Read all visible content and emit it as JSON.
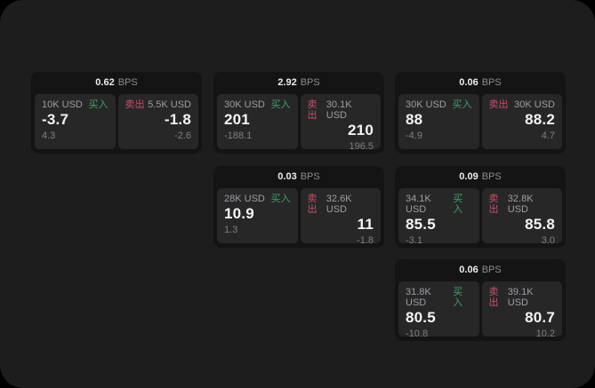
{
  "page": {
    "background": "#1d1d1e",
    "outer_background": "#000000",
    "card_background": "#141414",
    "tile_background": "#272728",
    "buy_color": "#3fa169",
    "sell_color": "#c84f6a"
  },
  "labels": {
    "bps_unit": "BPS",
    "buy": "买入",
    "sell": "卖出"
  },
  "cards": [
    {
      "bps": "0.62",
      "buy": {
        "notional": "10K USD",
        "price": "-3.7",
        "sub": "4.3"
      },
      "sell": {
        "notional": "5.5K USD",
        "price": "-1.8",
        "sub": "-2.6"
      }
    },
    {
      "bps": "2.92",
      "buy": {
        "notional": "30K USD",
        "price": "201",
        "sub": "-188.1"
      },
      "sell": {
        "notional": "30.1K USD",
        "price": "210",
        "sub": "196.5"
      }
    },
    {
      "bps": "0.06",
      "buy": {
        "notional": "30K USD",
        "price": "88",
        "sub": "-4.9"
      },
      "sell": {
        "notional": "30K USD",
        "price": "88.2",
        "sub": "4.7"
      }
    },
    {
      "bps": "0.03",
      "buy": {
        "notional": "28K USD",
        "price": "10.9",
        "sub": "1.3"
      },
      "sell": {
        "notional": "32.6K USD",
        "price": "11",
        "sub": "-1.8"
      }
    },
    {
      "bps": "0.09",
      "buy": {
        "notional": "34.1K USD",
        "price": "85.5",
        "sub": "-3.1"
      },
      "sell": {
        "notional": "32.8K USD",
        "price": "85.8",
        "sub": "3.0"
      }
    },
    {
      "bps": "0.06",
      "buy": {
        "notional": "31.8K USD",
        "price": "80.5",
        "sub": "-10.8"
      },
      "sell": {
        "notional": "39.1K USD",
        "price": "80.7",
        "sub": "10.2"
      }
    }
  ]
}
